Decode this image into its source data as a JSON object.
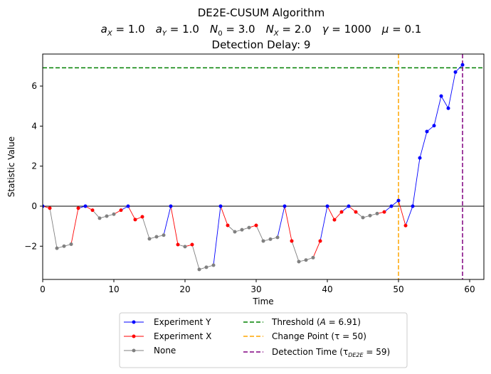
{
  "chart_data": {
    "type": "line",
    "title": "DE2E-CUSUM Algorithm",
    "subtitle_params": [
      {
        "sym": "a",
        "sub": "X",
        "value": "1.0"
      },
      {
        "sym": "a",
        "sub": "Y",
        "value": "1.0"
      },
      {
        "sym": "N",
        "sub": "0",
        "value": "3.0"
      },
      {
        "sym": "N",
        "sub": "X",
        "value": "2.0"
      },
      {
        "sym": "γ",
        "sub": "",
        "value": "1000"
      },
      {
        "sym": "μ",
        "sub": "",
        "value": "0.1"
      }
    ],
    "delay_label": "Detection Delay: 9",
    "xlabel": "Time",
    "ylabel": "Statistic Value",
    "xlim": [
      0,
      62
    ],
    "ylim": [
      -3.66,
      7.6
    ],
    "xticks": [
      0,
      10,
      20,
      30,
      40,
      50,
      60
    ],
    "yticks": [
      -2,
      0,
      2,
      4,
      6
    ],
    "ytick_labels": [
      "−2",
      "0",
      "2",
      "4",
      "6"
    ],
    "grid": false,
    "x": [
      0,
      1,
      2,
      3,
      4,
      5,
      6,
      7,
      8,
      9,
      10,
      11,
      12,
      13,
      14,
      15,
      16,
      17,
      18,
      19,
      20,
      21,
      22,
      23,
      24,
      25,
      26,
      27,
      28,
      29,
      30,
      31,
      32,
      33,
      34,
      35,
      36,
      37,
      38,
      39,
      40,
      41,
      42,
      43,
      44,
      45,
      46,
      47,
      48,
      49,
      50,
      51,
      52,
      53,
      54,
      55,
      56,
      57,
      58,
      59
    ],
    "y": [
      0,
      -0.1,
      -2.1,
      -2.0,
      -1.9,
      -0.1,
      0,
      -0.2,
      -0.6,
      -0.5,
      -0.4,
      -0.2,
      0,
      -0.67,
      -0.53,
      -1.63,
      -1.53,
      -1.45,
      0,
      -1.92,
      -2.02,
      -1.92,
      -3.16,
      -3.05,
      -2.95,
      0,
      -0.96,
      -1.28,
      -1.18,
      -1.07,
      -0.96,
      -1.74,
      -1.65,
      -1.56,
      0,
      -1.74,
      -2.77,
      -2.69,
      -2.57,
      -1.74,
      0,
      -0.68,
      -0.29,
      0,
      -0.29,
      -0.57,
      -0.47,
      -0.37,
      -0.29,
      0,
      0.28,
      -0.97,
      0,
      2.41,
      3.73,
      4.02,
      5.5,
      4.89,
      6.7,
      7.06
    ],
    "category": [
      "Y",
      "X",
      "N",
      "N",
      "N",
      "X",
      "Y",
      "X",
      "N",
      "N",
      "N",
      "X",
      "Y",
      "X",
      "X",
      "N",
      "N",
      "N",
      "Y",
      "X",
      "N",
      "X",
      "N",
      "N",
      "N",
      "Y",
      "X",
      "N",
      "N",
      "N",
      "X",
      "N",
      "N",
      "N",
      "Y",
      "X",
      "N",
      "N",
      "N",
      "X",
      "Y",
      "X",
      "X",
      "Y",
      "X",
      "N",
      "N",
      "N",
      "X",
      "Y",
      "Y",
      "X",
      "Y",
      "Y",
      "Y",
      "Y",
      "Y",
      "Y",
      "Y",
      "Y"
    ],
    "series": [
      {
        "key": "Y",
        "name": "Experiment Y",
        "color": "#0000ff"
      },
      {
        "key": "X",
        "name": "Experiment X",
        "color": "#ff0000"
      },
      {
        "key": "N",
        "name": "None",
        "color": "#808080"
      }
    ],
    "reference_lines": [
      {
        "name": "threshold",
        "orientation": "horizontal",
        "value": 6.91,
        "color": "#008000",
        "label_pre": "Threshold (",
        "label_sym": "A",
        "label_sub": "",
        "label_post": " = 6.91)"
      },
      {
        "name": "change-point",
        "orientation": "vertical",
        "value": 50,
        "color": "#ffa500",
        "label_pre": "Change Point (",
        "label_sym": "τ",
        "label_sub": "",
        "label_post": " = 50)"
      },
      {
        "name": "detection-time",
        "orientation": "vertical",
        "value": 59,
        "color": "#800080",
        "label_pre": "Detection Time (",
        "label_sym": "τ",
        "label_sub": "DE2E",
        "label_post": " = 59)"
      }
    ],
    "baseline": 0,
    "legend_placement": "bottom-center"
  }
}
